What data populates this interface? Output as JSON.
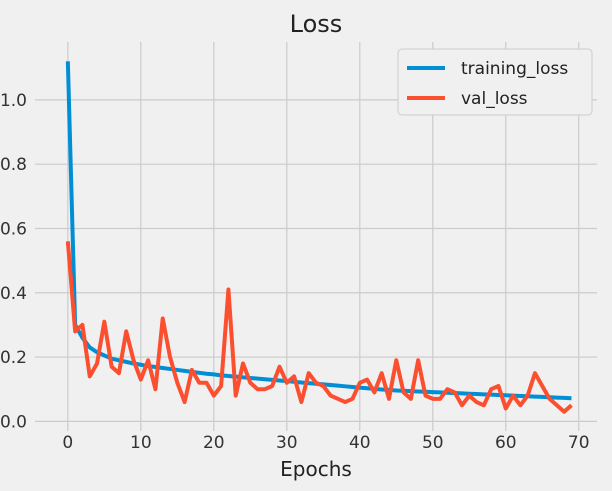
{
  "chart_data": {
    "type": "line",
    "title": "Loss",
    "xlabel": "Epochs",
    "ylabel": "",
    "xlim": [
      -4.5,
      72.5
    ],
    "ylim": [
      -0.03,
      1.18
    ],
    "x_ticks": [
      0,
      10,
      20,
      30,
      40,
      50,
      60,
      70
    ],
    "y_ticks": [
      0.0,
      0.2,
      0.4,
      0.6,
      0.8,
      1.0
    ],
    "x_tick_labels": [
      "0",
      "10",
      "20",
      "30",
      "40",
      "50",
      "60",
      "70"
    ],
    "y_tick_labels": [
      "0.0",
      "0.2",
      "0.4",
      "0.6",
      "0.8",
      "1.0"
    ],
    "grid": true,
    "legend_position": "top-right",
    "x": [
      0,
      1,
      2,
      3,
      4,
      5,
      6,
      7,
      8,
      9,
      10,
      11,
      12,
      13,
      14,
      15,
      16,
      17,
      18,
      19,
      20,
      21,
      22,
      23,
      24,
      25,
      26,
      27,
      28,
      29,
      30,
      31,
      32,
      33,
      34,
      35,
      36,
      37,
      38,
      39,
      40,
      41,
      42,
      43,
      44,
      45,
      46,
      47,
      48,
      49,
      50,
      51,
      52,
      53,
      54,
      55,
      56,
      57,
      58,
      59,
      60,
      61,
      62,
      63,
      64,
      65,
      66,
      67,
      68,
      69
    ],
    "series": [
      {
        "name": "training_loss",
        "color": "#008fd5",
        "values": [
          1.12,
          0.3,
          0.26,
          0.23,
          0.215,
          0.205,
          0.195,
          0.19,
          0.185,
          0.18,
          0.176,
          0.172,
          0.169,
          0.166,
          0.163,
          0.16,
          0.157,
          0.154,
          0.151,
          0.148,
          0.146,
          0.143,
          0.141,
          0.139,
          0.137,
          0.135,
          0.133,
          0.131,
          0.129,
          0.127,
          0.125,
          0.123,
          0.121,
          0.119,
          0.117,
          0.115,
          0.113,
          0.111,
          0.109,
          0.107,
          0.105,
          0.103,
          0.101,
          0.099,
          0.098,
          0.096,
          0.095,
          0.094,
          0.093,
          0.092,
          0.091,
          0.09,
          0.089,
          0.088,
          0.087,
          0.086,
          0.085,
          0.084,
          0.083,
          0.082,
          0.081,
          0.08,
          0.079,
          0.078,
          0.077,
          0.076,
          0.075,
          0.074,
          0.073,
          0.072
        ]
      },
      {
        "name": "val_loss",
        "color": "#fc4f30",
        "values": [
          0.56,
          0.28,
          0.3,
          0.14,
          0.18,
          0.31,
          0.17,
          0.15,
          0.28,
          0.19,
          0.13,
          0.19,
          0.1,
          0.32,
          0.2,
          0.12,
          0.06,
          0.16,
          0.12,
          0.12,
          0.08,
          0.11,
          0.41,
          0.08,
          0.18,
          0.12,
          0.1,
          0.1,
          0.11,
          0.17,
          0.12,
          0.14,
          0.06,
          0.15,
          0.12,
          0.11,
          0.08,
          0.07,
          0.06,
          0.07,
          0.12,
          0.13,
          0.09,
          0.15,
          0.07,
          0.19,
          0.09,
          0.07,
          0.19,
          0.08,
          0.07,
          0.07,
          0.1,
          0.09,
          0.05,
          0.08,
          0.06,
          0.05,
          0.1,
          0.11,
          0.04,
          0.08,
          0.05,
          0.08,
          0.15,
          0.11,
          0.07,
          0.05,
          0.03,
          0.05
        ]
      }
    ]
  }
}
